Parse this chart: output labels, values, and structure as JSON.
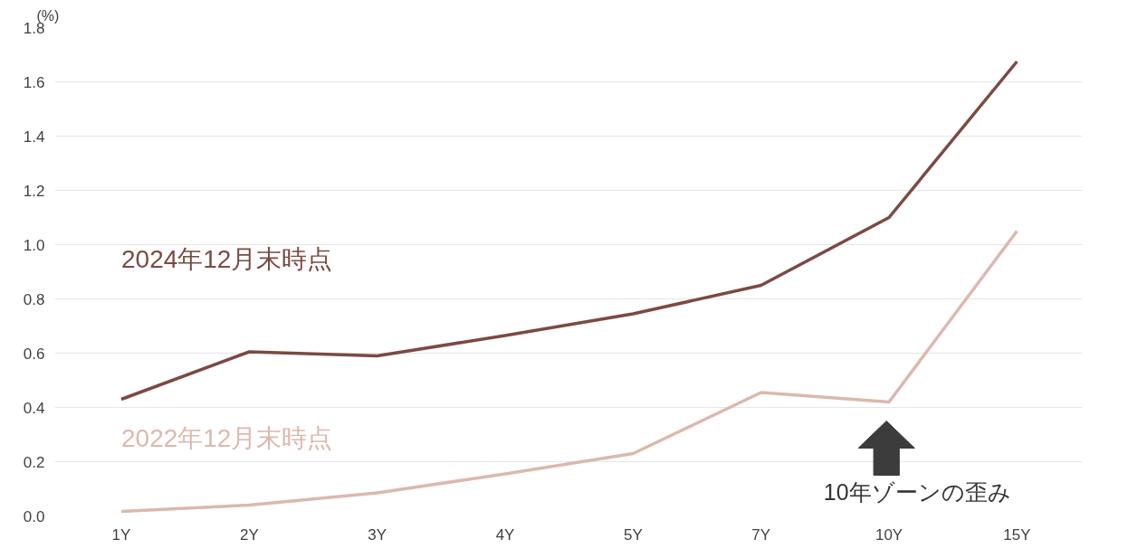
{
  "chart_data": {
    "type": "line",
    "ylabel": "(%)",
    "categories": [
      "1Y",
      "2Y",
      "3Y",
      "4Y",
      "5Y",
      "7Y",
      "10Y",
      "15Y"
    ],
    "series": [
      {
        "name": "2024年12月末時点",
        "color": "#7b4a42",
        "values": [
          0.43,
          0.605,
          0.59,
          0.665,
          0.745,
          0.85,
          1.1,
          1.675
        ]
      },
      {
        "name": "2022年12月末時点",
        "color": "#dcb8ad",
        "values": [
          0.017,
          0.04,
          0.085,
          0.155,
          0.23,
          0.455,
          0.42,
          1.05
        ]
      }
    ],
    "ylim": [
      0,
      1.8
    ],
    "yticks": [
      {
        "value": 0,
        "label": "0.0"
      },
      0.2,
      0.4,
      0.6,
      0.8,
      {
        "value": 1,
        "label": "1.0"
      },
      1.2,
      1.4,
      1.6,
      1.8
    ],
    "grid": "y",
    "legend": false,
    "marker": "none",
    "line_style": "solid",
    "annotations": [
      "10年ゾーンの歪み"
    ]
  }
}
